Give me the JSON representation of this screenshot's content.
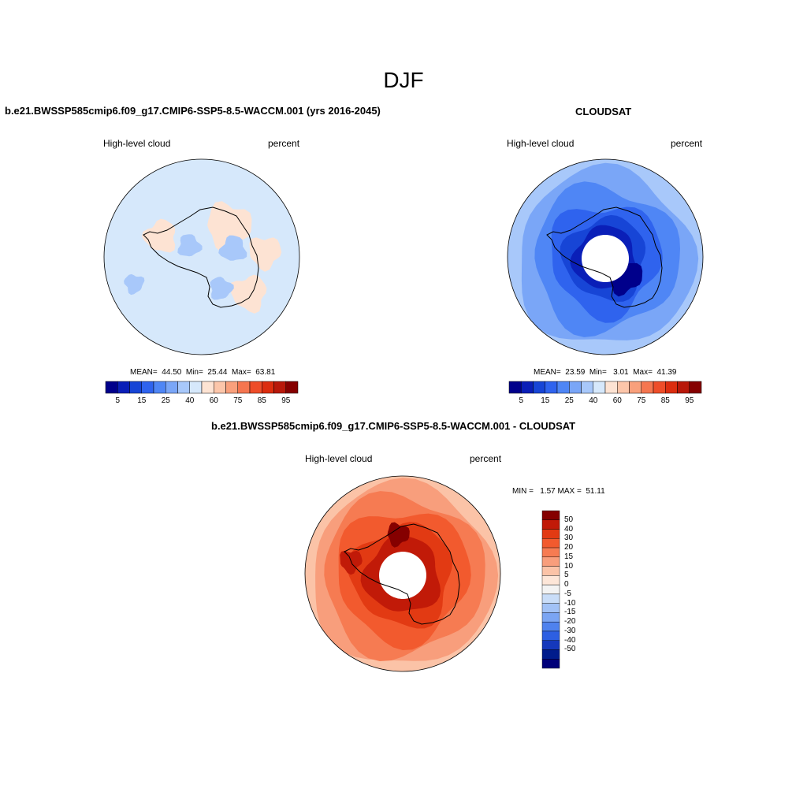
{
  "figure": {
    "title": "DJF",
    "colors": {
      "neutral_light_blue": "#d6e8fb",
      "model_warm_patch": "#fde3d3",
      "coastline": "#000000"
    }
  },
  "panels": [
    {
      "title": "b.e21.BWSSP585cmip6.f09_g17.CMIP6-SSP5-8.5-WACCM.001 (yrs 2016-2045)",
      "left_label": "High-level cloud",
      "right_label": "percent",
      "stats": "MEAN=  44.50  Min=  25.44  Max=  63.81"
    },
    {
      "title": "CLOUDSAT",
      "left_label": "High-level cloud",
      "right_label": "percent",
      "stats": "MEAN=  23.59  Min=   3.01  Max=  41.39"
    },
    {
      "title": "b.e21.BWSSP585cmip6.f09_g17.CMIP6-SSP5-8.5-WACCM.001 - CLOUDSAT",
      "left_label": "High-level cloud",
      "right_label": "percent",
      "stats": "MIN =   1.57 MAX =  51.11"
    }
  ],
  "colorbar_abs": {
    "tick_labels": [
      "5",
      "15",
      "25",
      "40",
      "60",
      "75",
      "85",
      "95"
    ],
    "colors": [
      "#00008b",
      "#0a1fb8",
      "#1745d6",
      "#2f63ee",
      "#4f86f5",
      "#7aa6f7",
      "#a8c8fa",
      "#d6e8fb",
      "#fde3d3",
      "#fcc6aa",
      "#f9a07c",
      "#f57650",
      "#ee4d29",
      "#dc2d0f",
      "#b8180a",
      "#850000"
    ]
  },
  "colorbar_diff": {
    "tick_labels": [
      "50",
      "40",
      "30",
      "20",
      "15",
      "10",
      "5",
      "0",
      "-5",
      "-10",
      "-15",
      "-20",
      "-30",
      "-40",
      "-50"
    ],
    "colors": [
      "#850000",
      "#c11a08",
      "#e23a13",
      "#f25a2e",
      "#f67b52",
      "#f89e7c",
      "#fbc3a7",
      "#fde6d8",
      "#f3f3f3",
      "#c9ddf8",
      "#a2c2f6",
      "#7ba5f3",
      "#4f82ee",
      "#2d5fe2",
      "#1538bb",
      "#001c8c",
      "#00007a"
    ]
  }
}
